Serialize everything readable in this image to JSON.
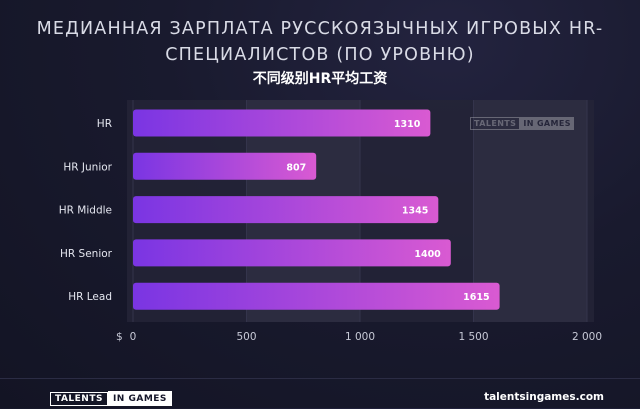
{
  "chart_data": {
    "type": "bar",
    "orientation": "horizontal",
    "title": "МЕДИАННАЯ ЗАРПЛАТА РУССКОЯЗЫЧНЫХ ИГРОВЫХ HR-СПЕЦИАЛИСТОВ (ПО УРОВНЮ)",
    "subtitle": "不同级别HR平均工资",
    "categories": [
      "HR",
      "HR Junior",
      "HR Middle",
      "HR Senior",
      "HR Lead"
    ],
    "values": [
      1310,
      807,
      1345,
      1400,
      1615
    ],
    "value_labels": [
      "1310",
      "807",
      "1345",
      "1400",
      "1615"
    ],
    "xlim": [
      0,
      2000
    ],
    "currency_label": "$",
    "ticks": [
      0,
      500,
      1000,
      1500,
      2000
    ],
    "tick_labels": [
      "0",
      "500",
      "1 000",
      "1 500",
      "2 000"
    ],
    "grid": "vertical",
    "colors": {
      "bar_start": "#7a35e3",
      "bar_end": "#d95ad2",
      "plot_background": "#262638",
      "grid_band": "#2c2c40"
    }
  },
  "watermark": {
    "part_a": "TALENTS",
    "part_b": "IN GAMES"
  },
  "footer": {
    "logo_part_a": "TALENTS",
    "logo_part_b": "IN GAMES",
    "website": "talentsingames.com"
  }
}
